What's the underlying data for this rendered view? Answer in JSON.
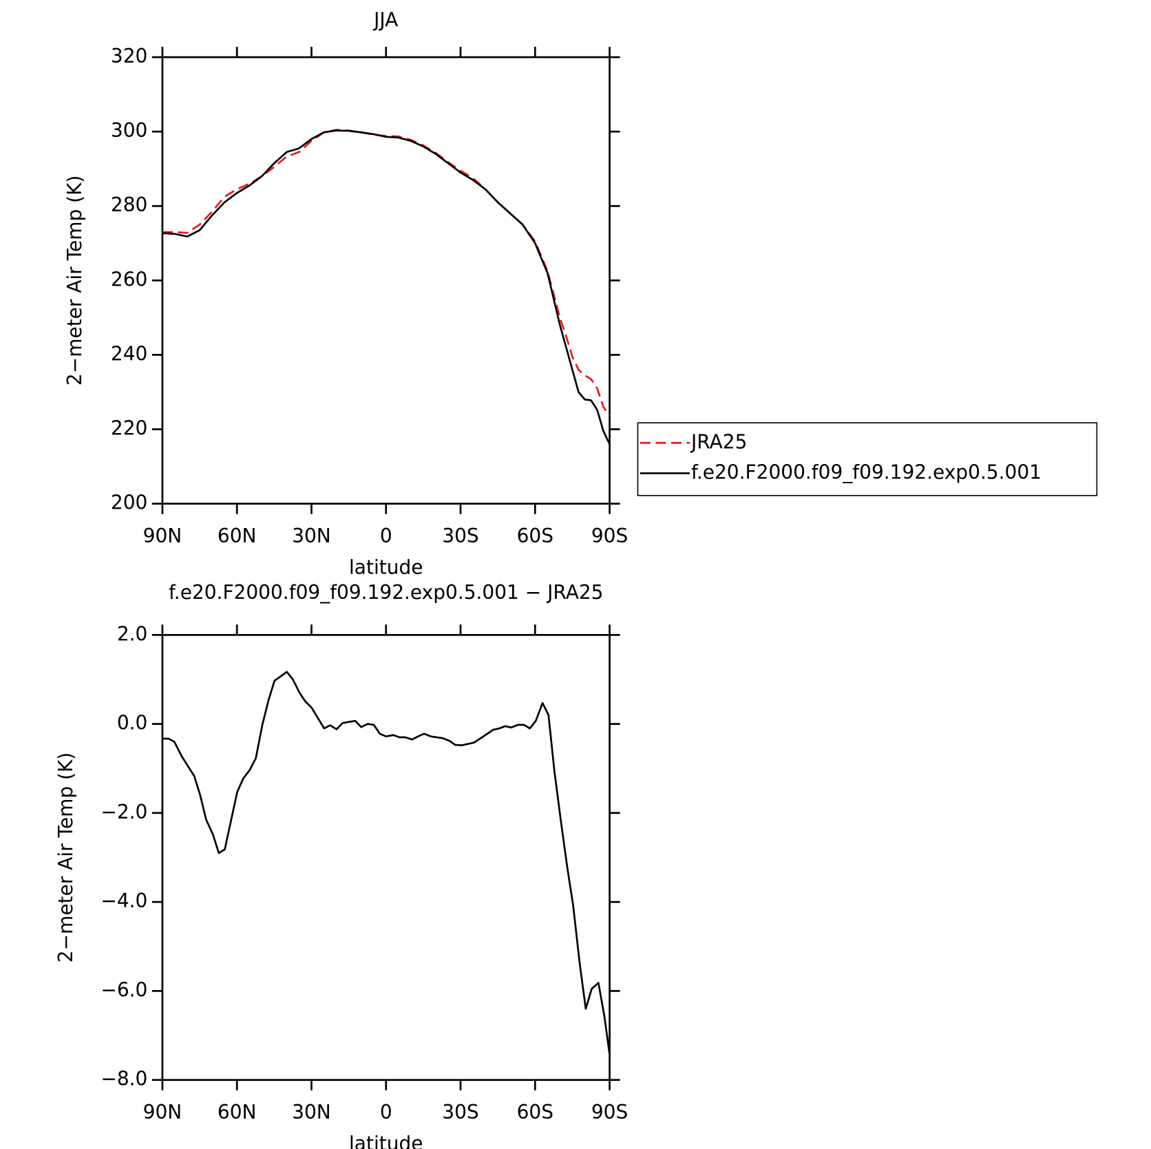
{
  "chart_data": [
    {
      "type": "line",
      "title": "JJA",
      "x_label": "latitude",
      "y_label": "2−meter Air Temp (K)",
      "xlim": [
        90,
        -90
      ],
      "xticks": [
        {
          "value": 90,
          "label": "90N"
        },
        {
          "value": 60,
          "label": "60N"
        },
        {
          "value": 30,
          "label": "30N"
        },
        0,
        {
          "value": -30,
          "label": "30S"
        },
        {
          "value": -60,
          "label": "60S"
        },
        {
          "value": -90,
          "label": "90S"
        }
      ],
      "ylim": [
        200,
        320
      ],
      "yticks": [
        200,
        220,
        240,
        260,
        280,
        300,
        320
      ],
      "x": [
        90,
        85,
        80,
        75,
        70,
        65,
        60,
        55,
        50,
        45,
        40,
        35,
        30,
        25,
        20,
        15,
        10,
        5,
        0,
        -5,
        -10,
        -15,
        -20,
        -25,
        -30,
        -35,
        -40,
        -45,
        -50,
        -55,
        -60,
        -65,
        -70,
        -72.5,
        -75,
        -77.5,
        -80,
        -82.5,
        -85,
        -87.5,
        -90
      ],
      "series": [
        {
          "name": "JRA25",
          "color": "#e41a1c",
          "dash": true,
          "values": [
            273,
            273,
            272.8,
            275,
            278.5,
            282.5,
            284.5,
            286,
            288,
            290.5,
            293.3,
            294.5,
            297.5,
            299.8,
            300.5,
            300.3,
            299.8,
            299.2,
            298.8,
            298.7,
            297.8,
            296.3,
            294.3,
            291.8,
            289.5,
            287.5,
            284.5,
            281,
            278,
            275,
            270.5,
            262.5,
            250,
            245,
            239.5,
            236,
            234.5,
            233.5,
            231,
            226,
            223.5
          ]
        },
        {
          "name": "f.e20.F2000.f09_f09.192.exp0.5.001",
          "color": "#000000",
          "dash": false,
          "values": [
            272.7,
            272.5,
            271.8,
            273.5,
            277.5,
            281,
            283.5,
            285.5,
            288,
            291.5,
            294.5,
            295.5,
            298,
            299.8,
            300.3,
            300.2,
            299.8,
            299.3,
            298.6,
            298.4,
            297.5,
            296,
            294,
            291.5,
            289,
            287,
            284.5,
            281,
            278,
            275,
            270,
            262,
            248,
            242,
            236,
            230,
            228,
            227.8,
            225.2,
            219.5,
            216
          ]
        }
      ]
    },
    {
      "type": "line",
      "title": "f.e20.F2000.f09_f09.192.exp0.5.001 − JRA25",
      "x_label": "latitude",
      "y_label": "2−meter Air Temp (K)",
      "xlim": [
        90,
        -90
      ],
      "xticks": [
        {
          "value": 90,
          "label": "90N"
        },
        {
          "value": 60,
          "label": "60N"
        },
        {
          "value": 30,
          "label": "30N"
        },
        0,
        {
          "value": -30,
          "label": "30S"
        },
        {
          "value": -60,
          "label": "60S"
        },
        {
          "value": -90,
          "label": "90S"
        }
      ],
      "ylim": [
        -8,
        2
      ],
      "yticks": [
        {
          "value": -8,
          "label": "−8.0"
        },
        {
          "value": -6,
          "label": "−6.0"
        },
        {
          "value": -4,
          "label": "−4.0"
        },
        {
          "value": -2,
          "label": "−2.0"
        },
        {
          "value": 0,
          "label": "0.0"
        },
        {
          "value": 2,
          "label": "2.0"
        }
      ],
      "x": [
        90,
        87.6,
        85.2,
        82.2,
        77.2,
        74.8,
        72.4,
        69.7,
        67.3,
        64.9,
        59.9,
        57.5,
        54.8,
        52.4,
        49.7,
        47.3,
        44.9,
        39.9,
        37.5,
        34.8,
        32.4,
        30,
        24.9,
        22.5,
        19.9,
        17.5,
        12.4,
        10,
        7.3,
        4.9,
        2.5,
        0,
        -3,
        -5.4,
        -7.8,
        -10.5,
        -12.9,
        -15.3,
        -18,
        -22.8,
        -25.5,
        -27.9,
        -30.6,
        -35.4,
        -40.5,
        -43.2,
        -45.6,
        -48,
        -50.4,
        -53.1,
        -55.5,
        -57.9,
        -60.3,
        -63,
        -65.4,
        -67.8,
        -70.5,
        -72.9,
        -75.3,
        -78,
        -80.4,
        -82.8,
        -85.5,
        -87.9,
        -90
      ],
      "series": [
        {
          "color": "#000000",
          "dash": false,
          "values": [
            -0.33,
            -0.33,
            -0.4,
            -0.73,
            -1.17,
            -1.6,
            -2.15,
            -2.48,
            -2.9,
            -2.82,
            -1.53,
            -1.23,
            -1.03,
            -0.77,
            0,
            0.53,
            0.97,
            1.17,
            1,
            0.7,
            0.5,
            0.37,
            -0.1,
            -0.03,
            -0.12,
            0.02,
            0.07,
            -0.07,
            0,
            -0.02,
            -0.22,
            -0.28,
            -0.25,
            -0.3,
            -0.3,
            -0.35,
            -0.28,
            -0.22,
            -0.28,
            -0.32,
            -0.38,
            -0.47,
            -0.48,
            -0.42,
            -0.23,
            -0.13,
            -0.1,
            -0.05,
            -0.08,
            -0.02,
            -0.02,
            -0.1,
            0.07,
            0.47,
            0.2,
            -1.07,
            -2.23,
            -3.2,
            -4.07,
            -5.4,
            -6.4,
            -5.95,
            -5.82,
            -6.57,
            -7.43
          ]
        }
      ]
    }
  ]
}
